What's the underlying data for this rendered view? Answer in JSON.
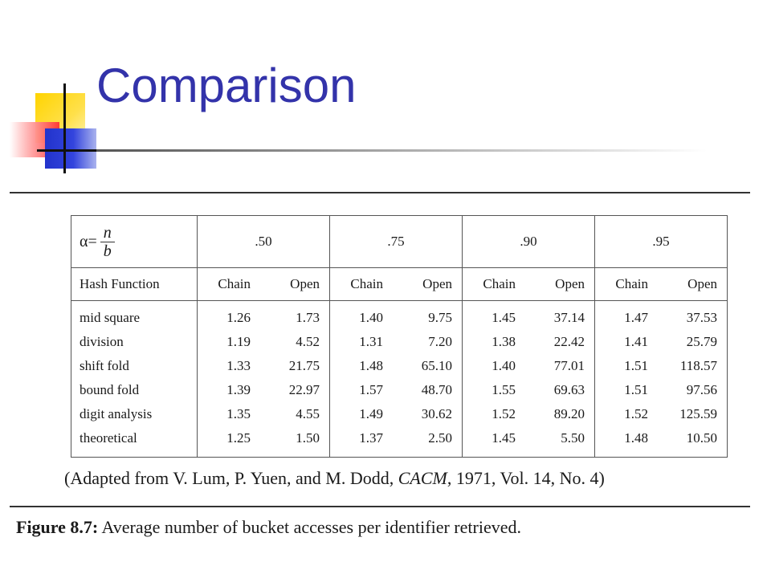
{
  "slide": {
    "title": "Comparison"
  },
  "table": {
    "alpha_label": "α=",
    "alpha_numerator": "n",
    "alpha_denominator": "b",
    "groups": [
      ".50",
      ".75",
      ".90",
      ".95"
    ],
    "row_header": "Hash Function",
    "sub_chain": "Chain",
    "sub_open": "Open",
    "rows": [
      {
        "name": "mid square",
        "values": [
          "1.26",
          "1.73",
          "1.40",
          "9.75",
          "1.45",
          "37.14",
          "1.47",
          "37.53"
        ]
      },
      {
        "name": "division",
        "values": [
          "1.19",
          "4.52",
          "1.31",
          "7.20",
          "1.38",
          "22.42",
          "1.41",
          "25.79"
        ]
      },
      {
        "name": "shift fold",
        "values": [
          "1.33",
          "21.75",
          "1.48",
          "65.10",
          "1.40",
          "77.01",
          "1.51",
          "118.57"
        ]
      },
      {
        "name": "bound fold",
        "values": [
          "1.39",
          "22.97",
          "1.57",
          "48.70",
          "1.55",
          "69.63",
          "1.51",
          "97.56"
        ]
      },
      {
        "name": "digit analysis",
        "values": [
          "1.35",
          "4.55",
          "1.49",
          "30.62",
          "1.52",
          "89.20",
          "1.52",
          "125.59"
        ]
      },
      {
        "name": "theoretical",
        "values": [
          "1.25",
          "1.50",
          "1.37",
          "2.50",
          "1.45",
          "5.50",
          "1.48",
          "10.50"
        ]
      }
    ]
  },
  "source": {
    "prefix": "(Adapted from V. Lum, P. Yuen, and M. Dodd, ",
    "journal": "CACM",
    "suffix": ", 1971, Vol. 14, No. 4)"
  },
  "caption": {
    "label": "Figure 8.7:",
    "text": " Average number of bucket accesses per identifier retrieved."
  },
  "colors": {
    "title": "#3333aa",
    "accent_yellow": "#ffd400",
    "accent_red": "#ff3333",
    "accent_blue": "#2233cc"
  }
}
